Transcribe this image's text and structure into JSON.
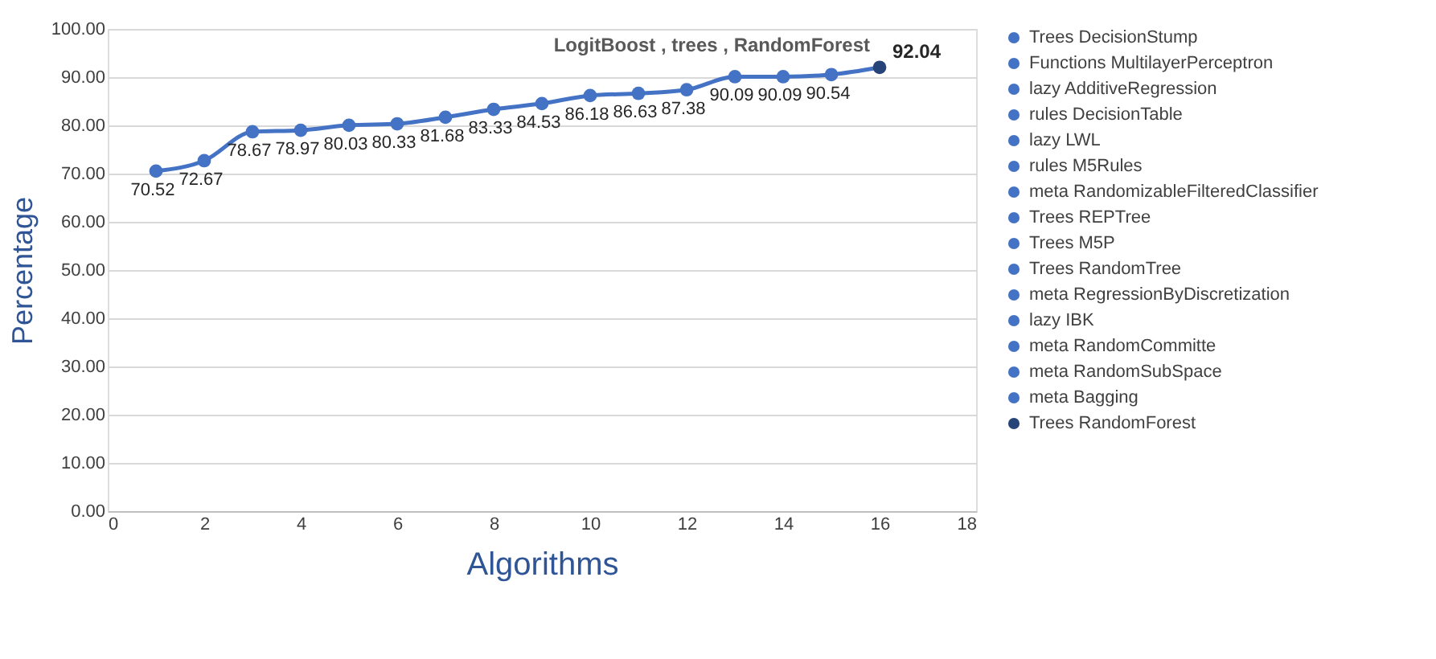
{
  "chart_data": {
    "type": "line",
    "xlabel": "Algorithms",
    "ylabel": "Percentage",
    "xlim": [
      0,
      18
    ],
    "xticks": [
      0,
      2,
      4,
      6,
      8,
      10,
      12,
      14,
      16,
      18
    ],
    "ylim": [
      0,
      100
    ],
    "yticks": [
      {
        "value": 0,
        "label": "0.00"
      },
      {
        "value": 10,
        "label": "10.00"
      },
      {
        "value": 20,
        "label": "20.00"
      },
      {
        "value": 30,
        "label": "30.00"
      },
      {
        "value": 40,
        "label": "40.00"
      },
      {
        "value": 50,
        "label": "50.00"
      },
      {
        "value": 60,
        "label": "60.00"
      },
      {
        "value": 70,
        "label": "70.00"
      },
      {
        "value": 80,
        "label": "80.00"
      },
      {
        "value": 90,
        "label": "90.00"
      },
      {
        "value": 100,
        "label": "100.00"
      }
    ],
    "grid": "y",
    "legend": "right",
    "marker": "circle",
    "annotations": [
      {
        "text": "LogitBoost , trees , RandomForest",
        "x": 16,
        "y": 92.04
      }
    ],
    "series": [
      {
        "type": "line",
        "marker": "none",
        "color": "#4472c4",
        "x": [
          1,
          2,
          3,
          4,
          5,
          6,
          7,
          8,
          9,
          10,
          11,
          12,
          13,
          14,
          15,
          16
        ],
        "values": [
          70.52,
          72.67,
          78.67,
          78.97,
          80.03,
          80.33,
          81.68,
          83.33,
          84.53,
          86.18,
          86.63,
          87.38,
          90.09,
          90.09,
          90.54,
          92.04
        ]
      },
      {
        "type": "scatter",
        "name": "Trees DecisionStump",
        "color": "#4472c4",
        "x": [
          1
        ],
        "values": [
          70.52
        ],
        "value_labels": [
          "70.52"
        ]
      },
      {
        "type": "scatter",
        "name": "Functions MultilayerPerceptron",
        "color": "#4472c4",
        "x": [
          2
        ],
        "values": [
          72.67
        ],
        "value_labels": [
          "72.67"
        ]
      },
      {
        "type": "scatter",
        "name": "lazy AdditiveRegression",
        "color": "#4472c4",
        "x": [
          3
        ],
        "values": [
          78.67
        ],
        "value_labels": [
          "78.67"
        ]
      },
      {
        "type": "scatter",
        "name": "rules DecisionTable",
        "color": "#4472c4",
        "x": [
          4
        ],
        "values": [
          78.97
        ],
        "value_labels": [
          "78.97"
        ]
      },
      {
        "type": "scatter",
        "name": "lazy LWL",
        "color": "#4472c4",
        "x": [
          5
        ],
        "values": [
          80.03
        ],
        "value_labels": [
          "80.03"
        ]
      },
      {
        "type": "scatter",
        "name": "rules M5Rules",
        "color": "#4472c4",
        "x": [
          6
        ],
        "values": [
          80.33
        ],
        "value_labels": [
          "80.33"
        ]
      },
      {
        "type": "scatter",
        "name": "meta RandomizableFilteredClassifier",
        "color": "#4472c4",
        "x": [
          7
        ],
        "values": [
          81.68
        ],
        "value_labels": [
          "81.68"
        ]
      },
      {
        "type": "scatter",
        "name": "Trees REPTree",
        "color": "#4472c4",
        "x": [
          8
        ],
        "values": [
          83.33
        ],
        "value_labels": [
          "83.33"
        ]
      },
      {
        "type": "scatter",
        "name": "Trees M5P",
        "color": "#4472c4",
        "x": [
          9
        ],
        "values": [
          84.53
        ],
        "value_labels": [
          "84.53"
        ]
      },
      {
        "type": "scatter",
        "name": "Trees RandomTree",
        "color": "#4472c4",
        "x": [
          10
        ],
        "values": [
          86.18
        ],
        "value_labels": [
          "86.18"
        ]
      },
      {
        "type": "scatter",
        "name": "meta RegressionByDiscretization",
        "color": "#4472c4",
        "x": [
          11
        ],
        "values": [
          86.63
        ],
        "value_labels": [
          "86.63"
        ]
      },
      {
        "type": "scatter",
        "name": "lazy IBK",
        "color": "#4472c4",
        "x": [
          12
        ],
        "values": [
          87.38
        ],
        "value_labels": [
          "87.38"
        ]
      },
      {
        "type": "scatter",
        "name": "meta RandomCommitte",
        "color": "#4472c4",
        "x": [
          13
        ],
        "values": [
          90.09
        ],
        "value_labels": [
          "90.09"
        ]
      },
      {
        "type": "scatter",
        "name": "meta RandomSubSpace",
        "color": "#4472c4",
        "x": [
          14
        ],
        "values": [
          90.09
        ],
        "value_labels": [
          "90.09"
        ]
      },
      {
        "type": "scatter",
        "name": "meta Bagging",
        "color": "#4472c4",
        "x": [
          15
        ],
        "values": [
          90.54
        ],
        "value_labels": [
          "90.54"
        ]
      },
      {
        "type": "scatter",
        "name": "Trees RandomForest",
        "color": "#264478",
        "x": [
          16
        ],
        "values": [
          92.04
        ],
        "value_labels": [
          "92.04"
        ]
      }
    ]
  }
}
